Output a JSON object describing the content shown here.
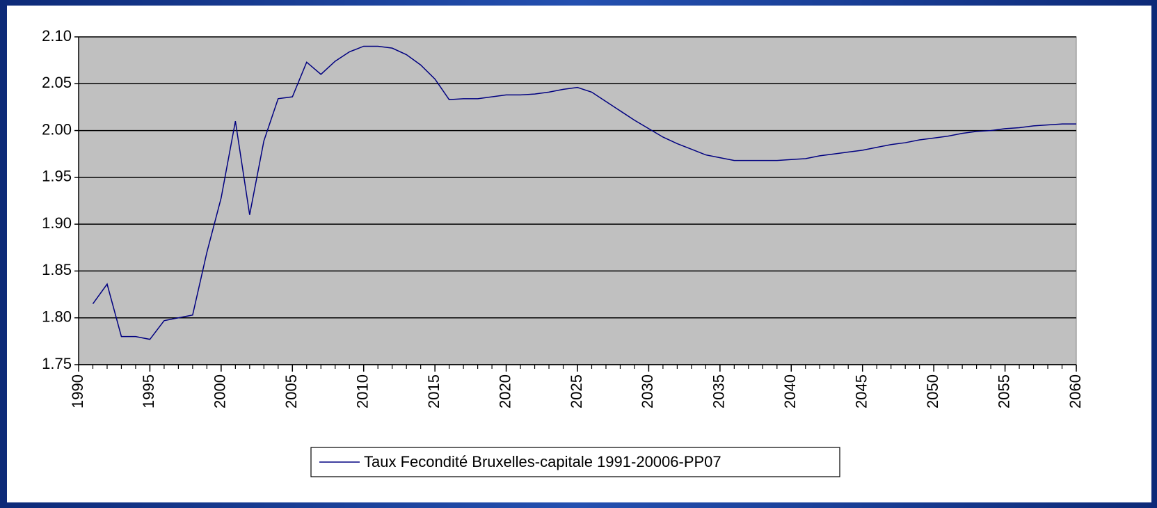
{
  "chart_data": {
    "type": "line",
    "x": [
      1991,
      1992,
      1993,
      1994,
      1995,
      1996,
      1997,
      1998,
      1999,
      2000,
      2001,
      2002,
      2003,
      2004,
      2005,
      2006,
      2007,
      2008,
      2009,
      2010,
      2011,
      2012,
      2013,
      2014,
      2015,
      2016,
      2017,
      2018,
      2019,
      2020,
      2021,
      2022,
      2023,
      2024,
      2025,
      2026,
      2027,
      2028,
      2029,
      2030,
      2031,
      2032,
      2033,
      2034,
      2035,
      2036,
      2037,
      2038,
      2039,
      2040,
      2041,
      2042,
      2043,
      2044,
      2045,
      2046,
      2047,
      2048,
      2049,
      2050,
      2051,
      2052,
      2053,
      2054,
      2055,
      2056,
      2057,
      2058,
      2059,
      2060
    ],
    "series": [
      {
        "name": "Taux Fecondité Bruxelles-capitale 1991-20006-PP07",
        "color": "#000080",
        "values": [
          1.815,
          1.836,
          1.78,
          1.78,
          1.777,
          1.797,
          1.8,
          1.803,
          1.87,
          1.928,
          2.01,
          1.91,
          1.989,
          2.034,
          2.036,
          2.073,
          2.06,
          2.074,
          2.084,
          2.09,
          2.09,
          2.088,
          2.081,
          2.07,
          2.055,
          2.033,
          2.034,
          2.034,
          2.036,
          2.038,
          2.038,
          2.039,
          2.041,
          2.044,
          2.046,
          2.041,
          2.031,
          2.021,
          2.011,
          2.002,
          1.993,
          1.986,
          1.98,
          1.974,
          1.971,
          1.968,
          1.968,
          1.968,
          1.968,
          1.969,
          1.97,
          1.973,
          1.975,
          1.977,
          1.979,
          1.982,
          1.985,
          1.987,
          1.99,
          1.992,
          1.994,
          1.997,
          1.999,
          2.0,
          2.002,
          2.003,
          2.005,
          2.006,
          2.007,
          2.007
        ]
      }
    ],
    "xlim": [
      1990,
      2060
    ],
    "xticks": [
      1990,
      1995,
      2000,
      2005,
      2010,
      2015,
      2020,
      2025,
      2030,
      2035,
      2040,
      2045,
      2050,
      2055,
      2060
    ],
    "ylim": [
      1.75,
      2.1
    ],
    "yticks": [
      1.75,
      {
        "value": 1.8,
        "label": "1.80"
      },
      1.85,
      {
        "value": 1.9,
        "label": "1.90"
      },
      1.95,
      {
        "value": 2.0,
        "label": "2.00"
      },
      2.05,
      {
        "value": 2.1,
        "label": "2.10"
      }
    ],
    "grid": true,
    "legend": "bottom"
  }
}
